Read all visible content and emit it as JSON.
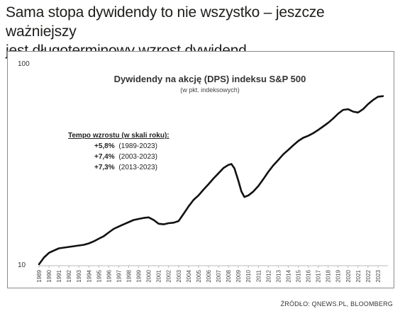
{
  "headline": {
    "line1": "Sama stopa dywidendy to nie wszystko – jeszcze ważniejszy",
    "line2": "jest długoterminowy wzrost dywidend."
  },
  "source": "ŹRÓDŁO: QNEWS.PL, BLOOMBERG",
  "chart_data": {
    "type": "line",
    "title": "Dywidendy na akcję (DPS) indeksu S&P 500",
    "subtitle": "(w pkt. indeksowych)",
    "y_scale": "log",
    "ylim": [
      10,
      100
    ],
    "y_ticks": [
      10,
      100
    ],
    "xlim": [
      1989,
      2024
    ],
    "x_ticks": [
      "1989",
      "1990",
      "1991",
      "1992",
      "1993",
      "1994",
      "1995",
      "1996",
      "1997",
      "1998",
      "1999",
      "2000",
      "2001",
      "2002",
      "2003",
      "2004",
      "2005",
      "2006",
      "2007",
      "2008",
      "2009",
      "2010",
      "2011",
      "2012",
      "2013",
      "2014",
      "2015",
      "2016",
      "2017",
      "2018",
      "2019",
      "2020",
      "2021",
      "2022",
      "2023"
    ],
    "grid": false,
    "line_color": "#111111",
    "annotation": {
      "heading": "Tempo wzrostu (w skali roku):",
      "items": [
        {
          "value": "+5,8%",
          "period": "(1989-2023)"
        },
        {
          "value": "+7,4%",
          "period": "(2003-2023)"
        },
        {
          "value": "+7,3%",
          "period": "(2013-2023)"
        }
      ]
    },
    "series": [
      {
        "x": [
          1989.0,
          1989.5,
          1990.0,
          1990.5,
          1991.0,
          1991.5,
          1992.0,
          1992.5,
          1993.0,
          1993.5,
          1994.0,
          1994.5,
          1995.0,
          1995.5,
          1996.0,
          1996.5,
          1997.0,
          1997.5,
          1998.0,
          1998.5,
          1999.0,
          1999.5,
          2000.0,
          2000.5,
          2001.0,
          2001.5,
          2002.0,
          2002.5,
          2003.0,
          2003.5,
          2004.0,
          2004.5,
          2005.0,
          2005.5,
          2006.0,
          2006.5,
          2007.0,
          2007.5,
          2008.0,
          2008.3,
          2008.6,
          2009.0,
          2009.3,
          2009.6,
          2010.0,
          2010.5,
          2011.0,
          2011.5,
          2012.0,
          2012.5,
          2013.0,
          2013.5,
          2014.0,
          2014.5,
          2015.0,
          2015.5,
          2016.0,
          2016.5,
          2017.0,
          2017.5,
          2018.0,
          2018.5,
          2019.0,
          2019.5,
          2020.0,
          2020.5,
          2021.0,
          2021.5,
          2022.0,
          2022.5,
          2023.0,
          2023.5
        ],
        "values": [
          10.0,
          10.8,
          11.4,
          11.7,
          12.0,
          12.1,
          12.2,
          12.3,
          12.4,
          12.5,
          12.7,
          13.0,
          13.4,
          13.8,
          14.4,
          15.0,
          15.4,
          15.8,
          16.2,
          16.6,
          16.8,
          17.0,
          17.1,
          16.6,
          15.9,
          15.8,
          16.0,
          16.1,
          16.4,
          17.8,
          19.4,
          20.9,
          22.0,
          23.5,
          25.0,
          26.7,
          28.3,
          30.1,
          31.2,
          31.5,
          30.0,
          26.0,
          23.0,
          21.6,
          22.0,
          23.0,
          24.5,
          26.5,
          28.8,
          31.0,
          33.0,
          35.2,
          37.0,
          39.0,
          41.0,
          42.5,
          43.5,
          44.8,
          46.5,
          48.4,
          50.5,
          53.0,
          56.0,
          58.5,
          59.0,
          57.4,
          56.8,
          59.0,
          62.5,
          65.5,
          68.0,
          68.5
        ]
      }
    ]
  }
}
